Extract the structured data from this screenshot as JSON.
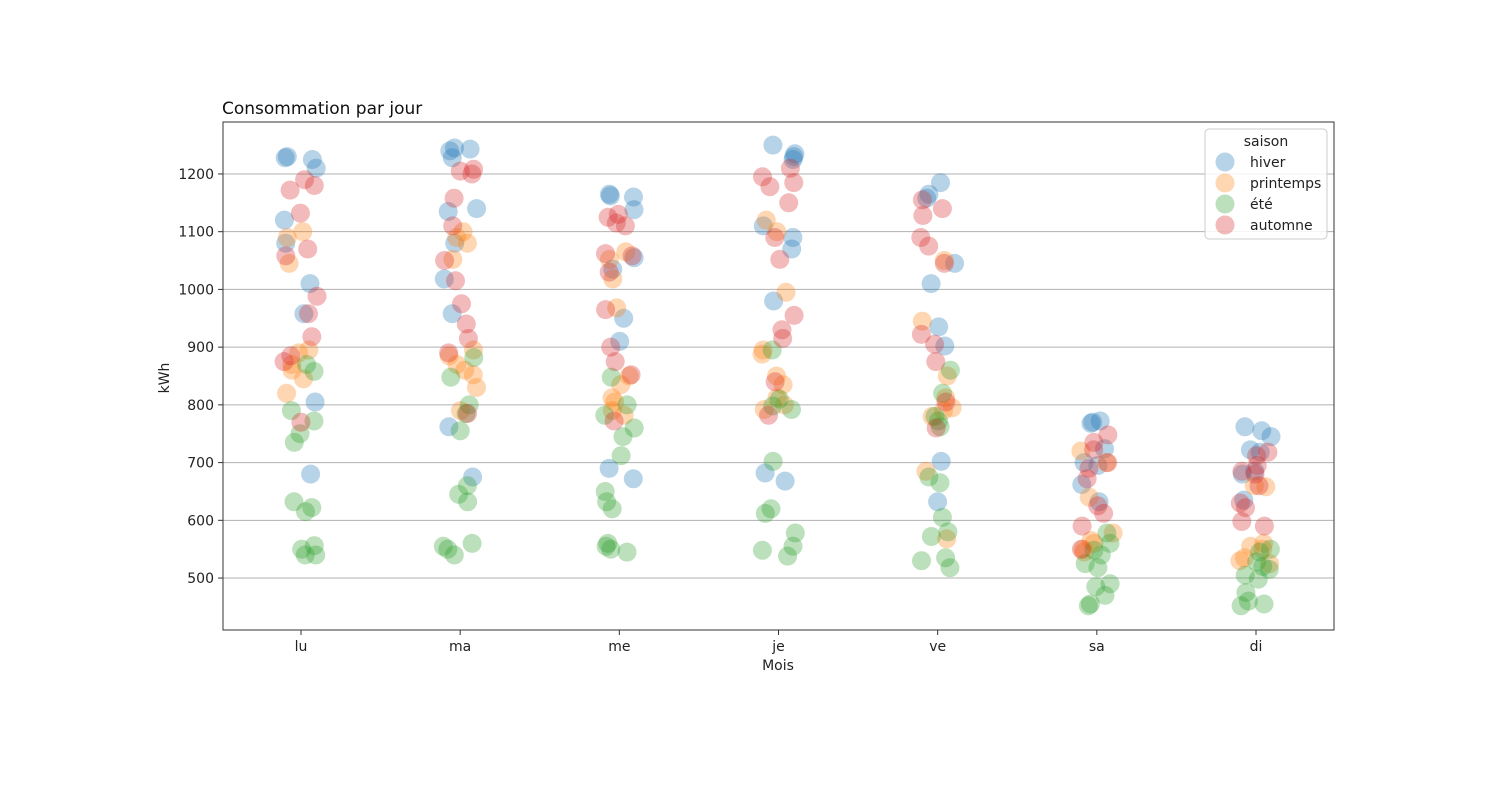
{
  "chart_data": {
    "type": "scatter",
    "title": "Consommation par jour",
    "xlabel": "Mois",
    "ylabel": "kWh",
    "categories": [
      "lu",
      "ma",
      "me",
      "je",
      "ve",
      "sa",
      "di"
    ],
    "ylim": [
      410,
      1290
    ],
    "yticks": [
      500,
      600,
      700,
      800,
      900,
      1000,
      1100,
      1200
    ],
    "grid": "y",
    "legend": {
      "title": "saison",
      "position": "top-right"
    },
    "series": [
      {
        "name": "hiver",
        "color": "#1f77b4",
        "values": [
          [
            1230,
            1225,
            1210,
            1228,
            1120,
            1080,
            1010,
            958,
            805,
            680
          ],
          [
            1245,
            1240,
            1228,
            1243,
            1140,
            1135,
            1080,
            1018,
            958,
            762,
            675
          ],
          [
            1165,
            1160,
            1162,
            1138,
            1055,
            1035,
            950,
            910,
            690,
            672
          ],
          [
            1250,
            1235,
            1230,
            1225,
            1110,
            1090,
            1070,
            980,
            682,
            668
          ],
          [
            1185,
            1165,
            1158,
            1045,
            1010,
            935,
            902,
            702,
            632
          ],
          [
            770,
            772,
            768,
            724,
            700,
            695,
            662,
            632
          ],
          [
            762,
            755,
            745,
            722,
            718,
            685,
            680,
            635
          ]
        ]
      },
      {
        "name": "printemps",
        "color": "#ff7f0e",
        "values": [
          [
            1100,
            1090,
            1045,
            890,
            870,
            860,
            845,
            820,
            895
          ],
          [
            1100,
            1090,
            1052,
            895,
            885,
            870,
            860,
            852,
            830,
            790,
            1080
          ],
          [
            1065,
            1052,
            1018,
            968,
            850,
            835,
            812,
            805,
            790,
            782
          ],
          [
            1120,
            1100,
            995,
            895,
            888,
            850,
            835,
            812,
            800,
            792
          ],
          [
            1050,
            945,
            850,
            812,
            795,
            790,
            780,
            685,
            568
          ],
          [
            578,
            565,
            560,
            550,
            545,
            640,
            700,
            720
          ],
          [
            660,
            658,
            560,
            555,
            550,
            535,
            530,
            525
          ]
        ]
      },
      {
        "name": "été",
        "color": "#2ca02c",
        "values": [
          [
            870,
            858,
            790,
            772,
            750,
            735,
            632,
            622,
            615,
            556,
            550,
            540,
            540
          ],
          [
            882,
            848,
            800,
            785,
            755,
            660,
            645,
            632,
            560,
            555,
            550,
            540
          ],
          [
            848,
            800,
            782,
            760,
            745,
            712,
            650,
            632,
            620,
            560,
            555,
            550,
            545
          ],
          [
            895,
            810,
            798,
            792,
            702,
            620,
            612,
            578,
            555,
            548,
            538
          ],
          [
            860,
            820,
            780,
            772,
            762,
            675,
            665,
            605,
            580,
            572,
            535,
            530,
            518
          ],
          [
            578,
            560,
            548,
            540,
            525,
            518,
            490,
            485,
            470,
            455,
            452
          ],
          [
            550,
            545,
            528,
            520,
            515,
            505,
            498,
            475,
            460,
            455,
            452
          ]
        ]
      },
      {
        "name": "automne",
        "color": "#d62728",
        "values": [
          [
            1190,
            1180,
            1172,
            1132,
            1070,
            1058,
            988,
            958,
            918,
            885,
            875,
            770
          ],
          [
            1208,
            1205,
            1200,
            1158,
            1110,
            1050,
            1015,
            975,
            940,
            915,
            890,
            785
          ],
          [
            1130,
            1125,
            1115,
            1110,
            1062,
            1058,
            1030,
            965,
            900,
            875,
            852,
            772
          ],
          [
            1210,
            1195,
            1185,
            1178,
            1150,
            1090,
            1052,
            955,
            930,
            915,
            840,
            782
          ],
          [
            1155,
            1140,
            1128,
            1090,
            1075,
            1045,
            922,
            905,
            875,
            805,
            760
          ],
          [
            748,
            735,
            722,
            700,
            690,
            672,
            625,
            612,
            590,
            550
          ],
          [
            718,
            712,
            695,
            685,
            680,
            660,
            630,
            622,
            598,
            590
          ]
        ]
      }
    ]
  }
}
